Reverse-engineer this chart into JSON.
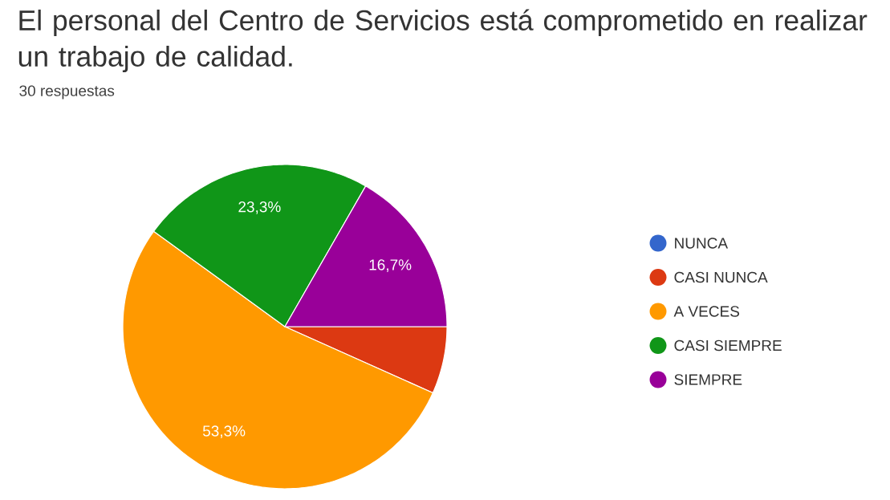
{
  "chart_data": {
    "type": "pie",
    "title": "El personal del Centro de Servicios está comprometido en realizar un trabajo de calidad.",
    "subtitle": "30 respuestas",
    "categories": [
      "NUNCA",
      "CASI NUNCA",
      "A VECES",
      "CASI SIEMPRE",
      "SIEMPRE"
    ],
    "values": [
      0,
      6.7,
      53.3,
      23.3,
      16.7
    ],
    "value_labels": [
      null,
      null,
      "53,3%",
      "23,3%",
      "16,7%"
    ],
    "colors": [
      "#3366cc",
      "#dc3912",
      "#ff9900",
      "#109618",
      "#990099"
    ],
    "legend": "right"
  }
}
